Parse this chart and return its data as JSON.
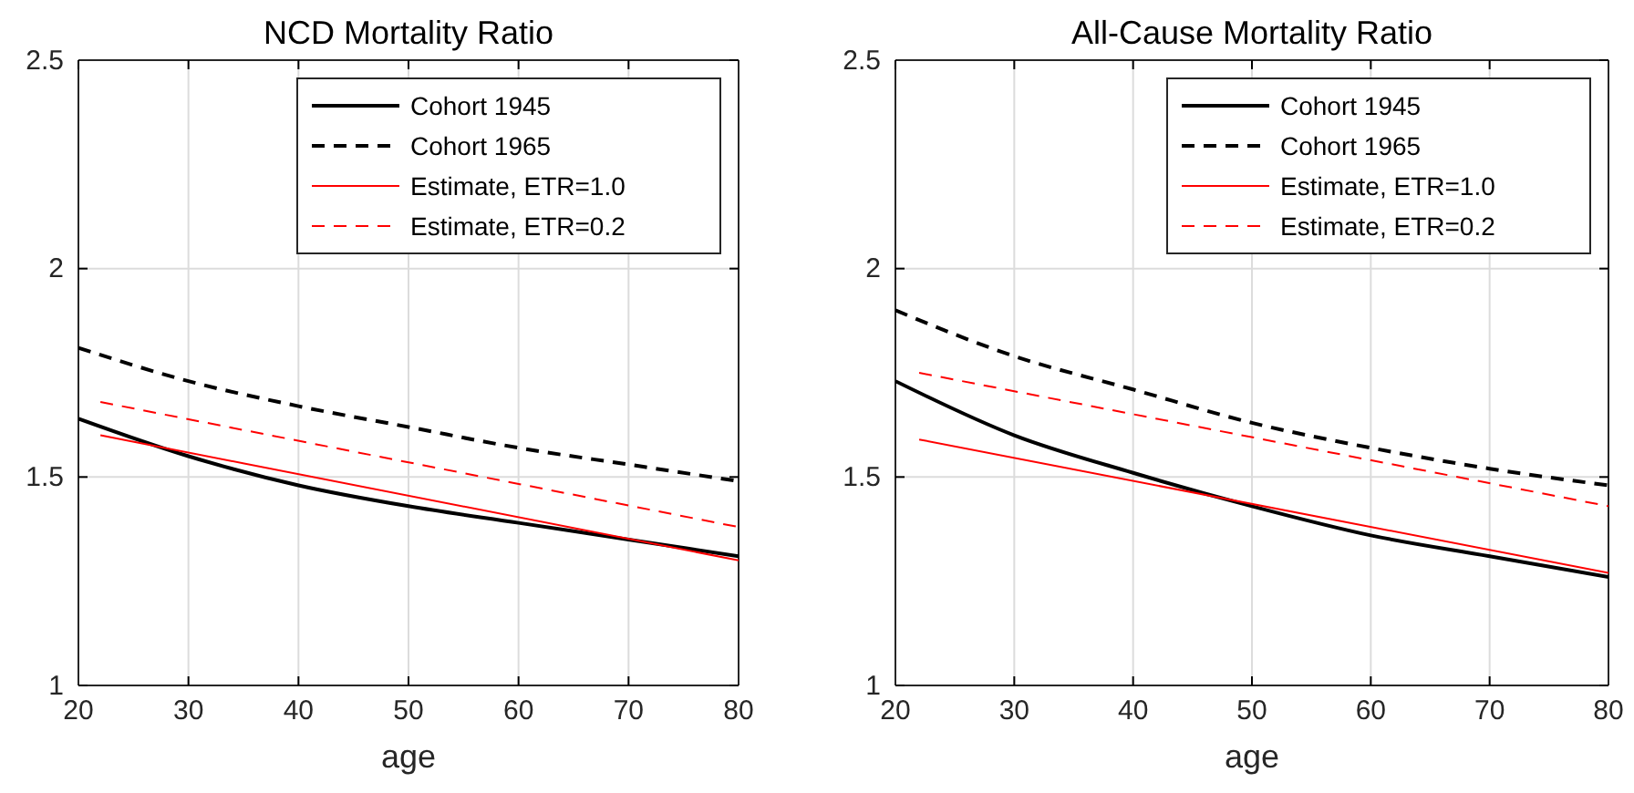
{
  "chart_data": [
    {
      "type": "line",
      "title": "NCD Mortality Ratio",
      "xlabel": "age",
      "xlim": [
        20,
        80
      ],
      "xticks": [
        20,
        30,
        40,
        50,
        60,
        70,
        80
      ],
      "ylim": [
        1,
        2.5
      ],
      "yticks": [
        1,
        1.5,
        2,
        2.5
      ],
      "grid": true,
      "legend": "top right",
      "marker": "none",
      "series": [
        {
          "name": "Cohort 1945",
          "color": "#000000",
          "line_style": "solid",
          "x": [
            20,
            30,
            40,
            50,
            60,
            70,
            80
          ],
          "values": [
            1.64,
            1.55,
            1.48,
            1.43,
            1.39,
            1.35,
            1.31
          ]
        },
        {
          "name": "Cohort 1965",
          "color": "#000000",
          "line_style": "dashed",
          "x": [
            20,
            30,
            40,
            50,
            60,
            70,
            80
          ],
          "values": [
            1.81,
            1.73,
            1.67,
            1.62,
            1.57,
            1.53,
            1.49
          ]
        },
        {
          "name": "Estimate, ETR=1.0",
          "color": "#ff0000",
          "line_style": "solid",
          "x": [
            22,
            80
          ],
          "values": [
            1.6,
            1.3
          ]
        },
        {
          "name": "Estimate, ETR=0.2",
          "color": "#ff0000",
          "line_style": "dashed",
          "x": [
            22,
            80
          ],
          "values": [
            1.68,
            1.38
          ]
        }
      ]
    },
    {
      "type": "line",
      "title": "All-Cause Mortality Ratio",
      "xlabel": "age",
      "xlim": [
        20,
        80
      ],
      "xticks": [
        20,
        30,
        40,
        50,
        60,
        70,
        80
      ],
      "ylim": [
        1,
        2.5
      ],
      "yticks": [
        1,
        1.5,
        2,
        2.5
      ],
      "grid": true,
      "legend": "top right",
      "marker": "none",
      "series": [
        {
          "name": "Cohort 1945",
          "color": "#000000",
          "line_style": "solid",
          "x": [
            20,
            30,
            40,
            50,
            60,
            70,
            80
          ],
          "values": [
            1.73,
            1.6,
            1.51,
            1.43,
            1.36,
            1.31,
            1.26
          ]
        },
        {
          "name": "Cohort 1965",
          "color": "#000000",
          "line_style": "dashed",
          "x": [
            20,
            30,
            40,
            50,
            60,
            70,
            80
          ],
          "values": [
            1.9,
            1.79,
            1.71,
            1.63,
            1.57,
            1.52,
            1.48
          ]
        },
        {
          "name": "Estimate, ETR=1.0",
          "color": "#ff0000",
          "line_style": "solid",
          "x": [
            22,
            80
          ],
          "values": [
            1.59,
            1.27
          ]
        },
        {
          "name": "Estimate, ETR=0.2",
          "color": "#ff0000",
          "line_style": "dashed",
          "x": [
            22,
            80
          ],
          "values": [
            1.75,
            1.43
          ]
        }
      ]
    }
  ]
}
